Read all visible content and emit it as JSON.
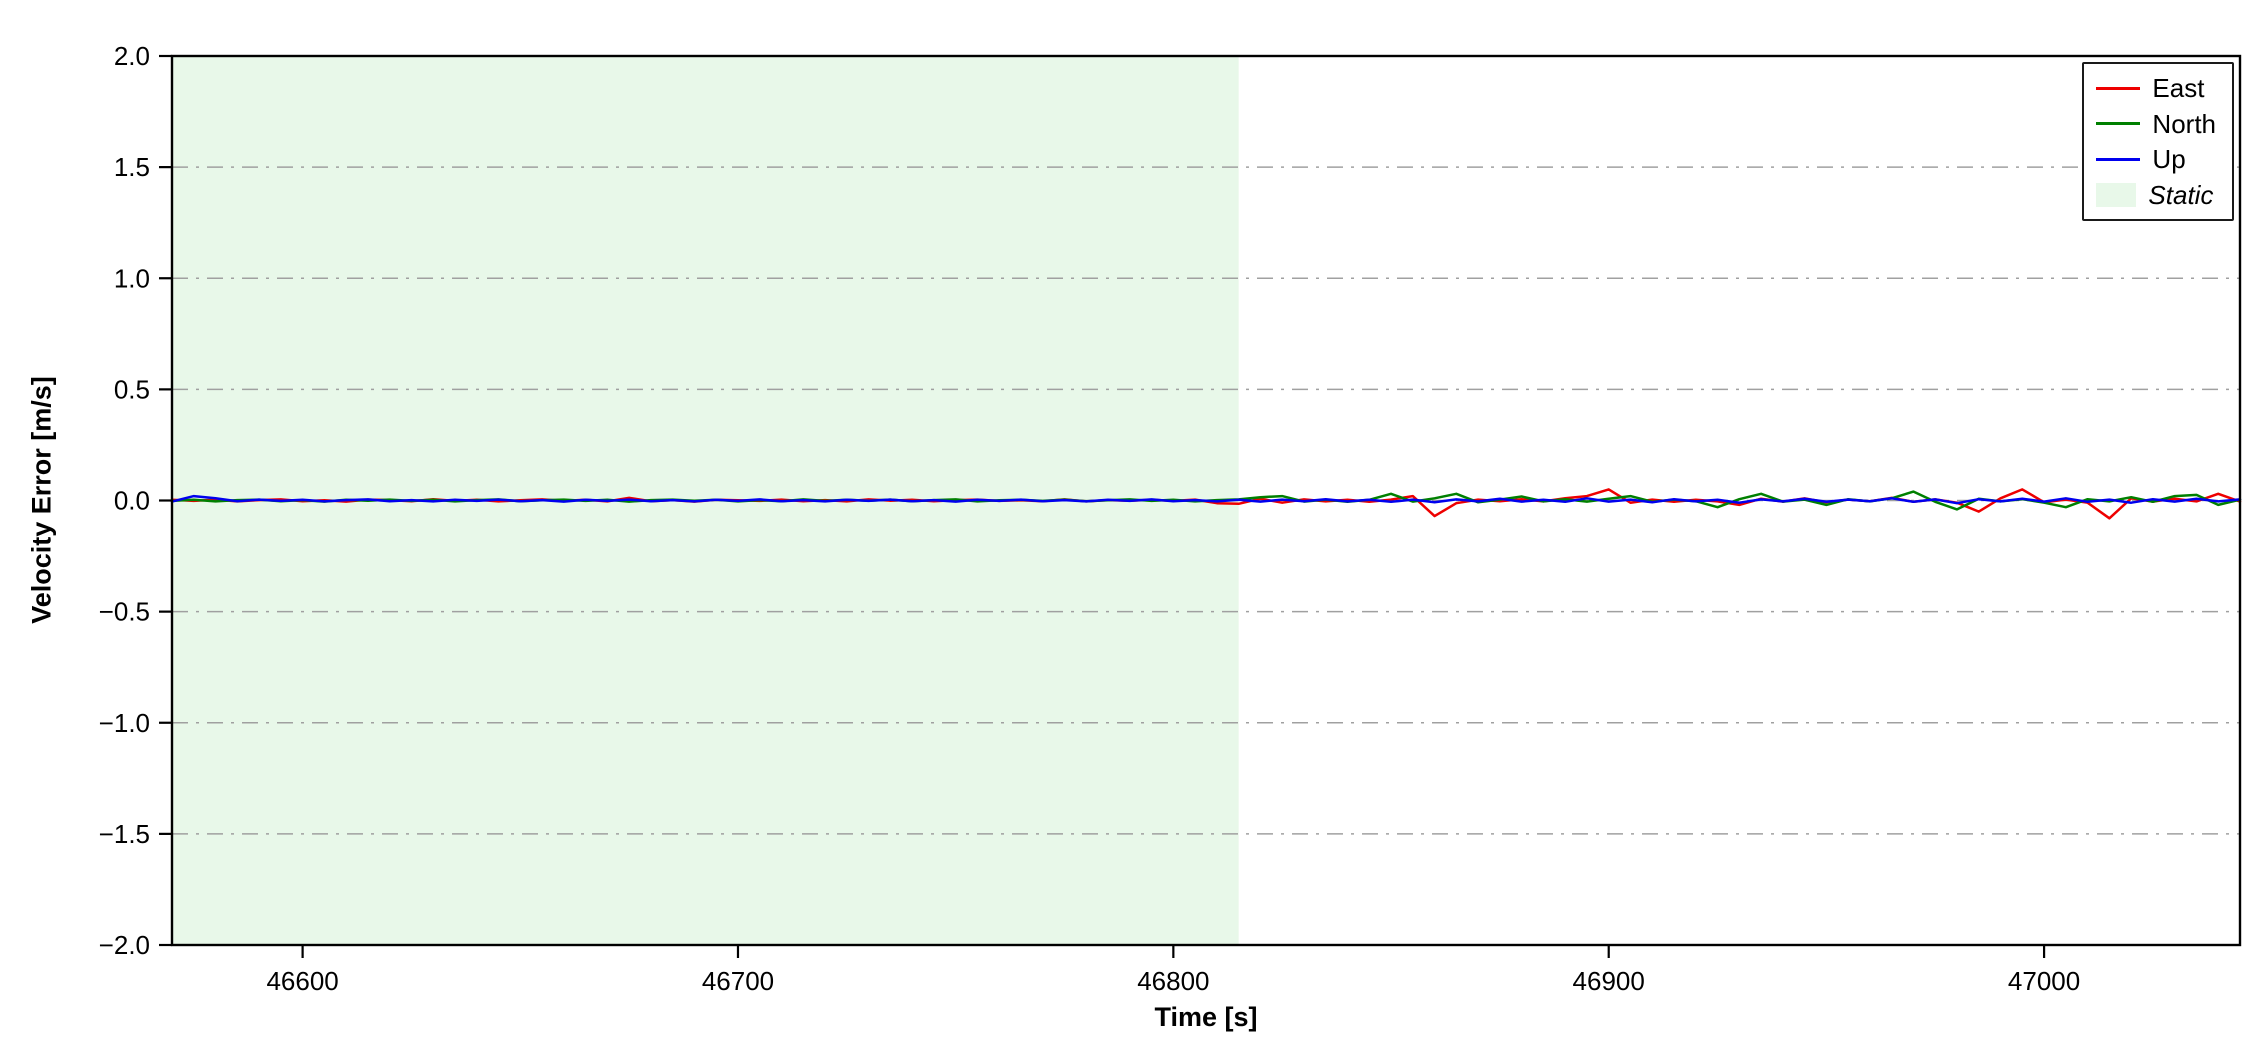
{
  "figure": {
    "xlabel": "Time [s]",
    "ylabel": "Velocity Error [m/s]",
    "background": "#ffffff",
    "spine_color": "#000000",
    "grid_color": "#a0a0a0"
  },
  "legend": {
    "position": "upper right",
    "items": [
      {
        "label": "East",
        "color": "#ee0000",
        "type": "line"
      },
      {
        "label": "North",
        "color": "#008000",
        "type": "line"
      },
      {
        "label": "Up",
        "color": "#0000ee",
        "type": "line"
      },
      {
        "label": "Static",
        "color": "#e8f8e9",
        "type": "patch"
      }
    ]
  },
  "chart_data": {
    "type": "line",
    "title": "",
    "xlabel": "Time [s]",
    "ylabel": "Velocity Error [m/s]",
    "xlim": [
      46570,
      47045
    ],
    "ylim": [
      -2.0,
      2.0
    ],
    "xticks": [
      46600,
      46700,
      46800,
      46900,
      47000
    ],
    "yticks": [
      -2.0,
      -1.5,
      -1.0,
      -0.5,
      0.0,
      0.5,
      1.0,
      1.5,
      2.0
    ],
    "grid": "horizontal dash-dot",
    "legend_position": "upper right",
    "static_region": {
      "label": "Static",
      "x_start": 46570,
      "x_end": 46815,
      "color": "#e8f8e9"
    },
    "x_start": 46570,
    "x_step": 5,
    "series": [
      {
        "name": "East",
        "color": "#ee0000",
        "values": [
          0.003,
          -0.002,
          0.004,
          -0.004,
          0.002,
          0.005,
          -0.003,
          0.001,
          -0.005,
          0.004,
          0.002,
          -0.003,
          0.006,
          -0.002,
          0.003,
          -0.004,
          0.001,
          0.005,
          -0.002,
          0.003,
          -0.004,
          0.012,
          -0.003,
          0.002,
          -0.005,
          0.003,
          0.001,
          -0.002,
          0.004,
          -0.003,
          0.002,
          -0.004,
          0.005,
          -0.001,
          0.003,
          -0.003,
          0.002,
          0.004,
          -0.002,
          0.001,
          -0.003,
          0.005,
          -0.004,
          0.002,
          -0.001,
          0.003,
          -0.002,
          0.004,
          -0.012,
          -0.015,
          0.008,
          -0.01,
          0.005,
          -0.004,
          0.003,
          -0.006,
          0.004,
          0.02,
          -0.07,
          -0.012,
          0.004,
          -0.003,
          0.006,
          -0.004,
          0.01,
          0.02,
          0.05,
          -0.01,
          0.004,
          -0.006,
          0.003,
          -0.004,
          -0.02,
          0.008,
          -0.005,
          0.01,
          -0.008,
          0.004,
          -0.003,
          0.012,
          -0.006,
          0.005,
          -0.01,
          -0.05,
          0.01,
          0.05,
          -0.008,
          0.004,
          -0.01,
          -0.08,
          0.01,
          -0.005,
          0.008,
          -0.004,
          0.03,
          -0.005
        ]
      },
      {
        "name": "North",
        "color": "#008000",
        "values": [
          -0.002,
          0.003,
          -0.004,
          0.002,
          0.004,
          -0.003,
          0.002,
          -0.005,
          0.003,
          -0.001,
          0.004,
          -0.002,
          0.003,
          -0.004,
          0.002,
          0.005,
          -0.003,
          0.001,
          0.004,
          -0.002,
          0.003,
          -0.005,
          0.002,
          0.004,
          -0.001,
          0.003,
          -0.004,
          0.002,
          -0.003,
          0.005,
          -0.002,
          0.003,
          -0.001,
          0.004,
          -0.003,
          0.002,
          0.005,
          -0.004,
          0.001,
          0.003,
          -0.002,
          0.004,
          -0.003,
          0.001,
          0.005,
          -0.002,
          0.003,
          -0.004,
          0.002,
          0.005,
          0.015,
          0.02,
          -0.005,
          0.004,
          -0.006,
          0.003,
          0.03,
          -0.005,
          0.01,
          0.03,
          -0.008,
          0.004,
          0.018,
          -0.004,
          0.006,
          -0.005,
          0.008,
          0.02,
          -0.006,
          0.004,
          -0.003,
          -0.03,
          0.006,
          0.03,
          -0.005,
          0.004,
          -0.02,
          0.006,
          -0.004,
          0.01,
          0.04,
          -0.006,
          -0.04,
          0.008,
          -0.004,
          0.006,
          -0.01,
          -0.03,
          0.006,
          -0.004,
          0.015,
          -0.006,
          0.02,
          0.025,
          -0.02,
          0.004
        ]
      },
      {
        "name": "Up",
        "color": "#0000ee",
        "values": [
          -0.005,
          0.02,
          0.01,
          -0.003,
          0.004,
          -0.002,
          0.003,
          -0.004,
          0.002,
          0.005,
          -0.003,
          0.002,
          -0.004,
          0.003,
          -0.002,
          0.004,
          -0.003,
          0.002,
          -0.005,
          0.003,
          -0.002,
          0.004,
          -0.003,
          0.002,
          -0.004,
          0.003,
          -0.002,
          0.005,
          -0.003,
          0.002,
          -0.004,
          0.003,
          -0.002,
          0.004,
          -0.003,
          0.002,
          -0.005,
          0.003,
          -0.002,
          0.004,
          -0.003,
          0.002,
          -0.004,
          0.003,
          -0.002,
          0.005,
          -0.003,
          0.002,
          -0.004,
          0.003,
          -0.005,
          0.004,
          -0.003,
          0.006,
          -0.004,
          0.003,
          -0.006,
          0.004,
          -0.008,
          0.005,
          -0.004,
          0.008,
          -0.005,
          0.003,
          -0.006,
          0.01,
          -0.005,
          0.004,
          -0.008,
          0.006,
          -0.004,
          0.003,
          -0.01,
          0.005,
          -0.004,
          0.008,
          -0.006,
          0.004,
          -0.003,
          0.01,
          -0.006,
          0.005,
          -0.012,
          0.006,
          -0.004,
          0.008,
          -0.005,
          0.01,
          -0.006,
          0.004,
          -0.01,
          0.006,
          -0.005,
          0.008,
          -0.004,
          0.005
        ]
      }
    ]
  }
}
